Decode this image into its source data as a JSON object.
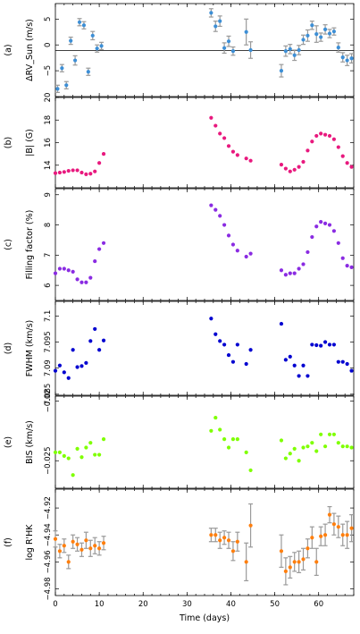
{
  "colors": {
    "rv": "#3d8fd6",
    "bfield": "#e8197e",
    "filling": "#8a2be2",
    "fwhm": "#0000d0",
    "bis": "#7fff00",
    "rhk": "#ff7f0e",
    "errbar": "#9a9a9a"
  },
  "xaxis": {
    "label": "Time (days)",
    "lim": [
      0,
      68
    ],
    "ticks": [
      0,
      10,
      20,
      30,
      40,
      50,
      60
    ]
  },
  "chart_data": [
    {
      "type": "scatter",
      "panel": "(a)",
      "ylabel": "(m/s)",
      "ylabel_full": "ΔRV_Sun (m/s)",
      "ylim": [
        -10,
        8
      ],
      "yticks": [
        -5,
        0,
        5
      ],
      "has_zero_line": true,
      "x": [
        0.5,
        1.5,
        2.5,
        3.5,
        4.5,
        5.5,
        6.5,
        7.5,
        8.5,
        9.5,
        10.5,
        35.5,
        36.5,
        37.5,
        38.5,
        39.5,
        40.5,
        43.5,
        44.5,
        51.5,
        52.5,
        53.5,
        54.5,
        55.5,
        56.5,
        57.5,
        58.5,
        59.5,
        60.5,
        61.5,
        62.5,
        63.5,
        64.5,
        65.5,
        66.5,
        67.5
      ],
      "y": [
        -8.5,
        -4.5,
        -7.8,
        0.8,
        -3.0,
        4.4,
        3.8,
        -5.2,
        1.8,
        -0.7,
        -0.2,
        6.2,
        3.6,
        4.6,
        -0.6,
        0.7,
        -1.2,
        2.5,
        -1.0,
        -5.0,
        -1.2,
        -0.8,
        -2.0,
        -1.0,
        1.0,
        1.8,
        3.8,
        2.1,
        1.5,
        3.0,
        2.2,
        2.6,
        -0.5,
        -2.4,
        -3.0,
        -2.6
      ],
      "err": [
        0.7,
        0.7,
        0.7,
        0.7,
        0.9,
        0.7,
        0.7,
        0.7,
        0.8,
        0.7,
        0.7,
        0.8,
        1.0,
        1.0,
        1.0,
        1.0,
        0.8,
        2.5,
        1.6,
        1.2,
        1.0,
        0.9,
        1.0,
        0.9,
        0.9,
        1.1,
        0.8,
        1.6,
        0.8,
        0.9,
        0.8,
        0.7,
        0.9,
        0.9,
        1.0,
        0.9
      ]
    },
    {
      "type": "scatter",
      "panel": "(b)",
      "ylabel": "|B| (G)",
      "ylim": [
        12.0,
        20.0
      ],
      "yticks": [
        14,
        16,
        18,
        20
      ],
      "x": [
        0,
        1,
        2,
        3,
        4,
        5,
        6,
        7,
        8,
        9,
        10,
        11,
        35.5,
        36.5,
        37.5,
        38.5,
        39.5,
        40.5,
        41.5,
        43.5,
        44.5,
        51.5,
        52.5,
        53.5,
        54.5,
        55.5,
        56.5,
        57.5,
        58.5,
        59.5,
        60.5,
        61.5,
        62.5,
        63.5,
        64.5,
        65.5,
        66.5,
        67.5
      ],
      "y": [
        13.3,
        13.35,
        13.4,
        13.5,
        13.55,
        13.55,
        13.35,
        13.2,
        13.25,
        13.45,
        14.2,
        15.0,
        18.2,
        17.5,
        16.8,
        16.4,
        15.7,
        15.2,
        14.9,
        14.6,
        14.4,
        14.05,
        13.7,
        13.45,
        13.6,
        13.85,
        14.3,
        15.3,
        16.1,
        16.6,
        16.8,
        16.7,
        16.6,
        16.3,
        15.6,
        14.8,
        14.2,
        13.85
      ]
    },
    {
      "type": "scatter",
      "panel": "(c)",
      "ylabel": "Filling factor  (%)",
      "ylim": [
        5.5,
        9.2
      ],
      "yticks": [
        6,
        7,
        8,
        9
      ],
      "x": [
        0,
        1,
        2,
        3,
        4,
        5,
        6,
        7,
        8,
        9,
        10,
        11,
        35.5,
        36.5,
        37.5,
        38.5,
        39.5,
        40.5,
        41.5,
        43.5,
        44.5,
        51.5,
        52.5,
        53.5,
        54.5,
        55.5,
        56.5,
        57.5,
        58.5,
        59.5,
        60.5,
        61.5,
        62.5,
        63.5,
        64.5,
        65.5,
        66.5,
        67.5
      ],
      "y": [
        6.4,
        6.55,
        6.55,
        6.5,
        6.45,
        6.2,
        6.1,
        6.1,
        6.25,
        6.8,
        7.2,
        7.4,
        8.65,
        8.5,
        8.3,
        8.0,
        7.65,
        7.35,
        7.15,
        6.95,
        7.05,
        6.5,
        6.35,
        6.4,
        6.4,
        6.55,
        6.7,
        7.1,
        7.6,
        7.95,
        8.1,
        8.05,
        8.0,
        7.8,
        7.4,
        6.9,
        6.65,
        6.6
      ]
    },
    {
      "type": "scatter",
      "panel": "(d)",
      "ylabel": "FWHM  (km/s)",
      "ylim": [
        7.0848,
        7.1028
      ],
      "yticks": [
        7.085,
        7.09,
        7.095,
        7.1
      ],
      "x": [
        0,
        1,
        2,
        3,
        4,
        5,
        6,
        7,
        8,
        9,
        10,
        11,
        35.5,
        36.5,
        37.5,
        38.5,
        39.5,
        40.5,
        41.5,
        43.5,
        44.5,
        51.5,
        52.5,
        53.5,
        54.5,
        55.5,
        56.5,
        57.5,
        58.5,
        59.5,
        60.5,
        61.5,
        62.5,
        63.5,
        64.5,
        65.5,
        66.5,
        67.5
      ],
      "y": [
        7.0895,
        7.0905,
        7.0892,
        7.0881,
        7.0935,
        7.0902,
        7.0904,
        7.091,
        7.0952,
        7.0975,
        7.0935,
        7.0953,
        7.0995,
        7.0965,
        7.0952,
        7.0945,
        7.0925,
        7.0912,
        7.0945,
        7.0908,
        7.0935,
        7.0985,
        7.0916,
        7.0922,
        7.0905,
        7.0885,
        7.0905,
        7.0885,
        7.0945,
        7.0944,
        7.0943,
        7.095,
        7.0945,
        7.0945,
        7.0912,
        7.0912,
        7.0908,
        7.0895
      ]
    },
    {
      "type": "scatter",
      "panel": "(e)",
      "ylabel": "BIS  (km/s)",
      "ylim": [
        -0.0273,
        -0.0196
      ],
      "yticks": [
        -0.025,
        -0.02
      ],
      "x": [
        0,
        1,
        2,
        3,
        4,
        5,
        6,
        7,
        8,
        9,
        10,
        11,
        35.5,
        36.5,
        37.5,
        38.5,
        39.5,
        40.5,
        41.5,
        43.5,
        44.5,
        51.5,
        52.5,
        53.5,
        54.5,
        55.5,
        56.5,
        57.5,
        58.5,
        59.5,
        60.5,
        61.5,
        62.5,
        63.5,
        64.5,
        65.5,
        66.5,
        67.5
      ],
      "y": [
        -0.0243,
        -0.0243,
        -0.0246,
        -0.0248,
        -0.0262,
        -0.024,
        -0.0247,
        -0.0239,
        -0.0235,
        -0.0245,
        -0.0245,
        -0.0232,
        -0.0225,
        -0.0214,
        -0.0224,
        -0.0232,
        -0.0239,
        -0.0232,
        -0.0232,
        -0.0243,
        -0.0258,
        -0.0233,
        -0.0248,
        -0.0244,
        -0.024,
        -0.025,
        -0.0239,
        -0.0238,
        -0.0235,
        -0.0242,
        -0.0228,
        -0.0238,
        -0.0228,
        -0.0228,
        -0.0235,
        -0.0238,
        -0.0238,
        -0.0239
      ]
    },
    {
      "type": "scatter",
      "panel": "(f)",
      "ylabel": "log R'HK",
      "ylim": [
        -4.985,
        -4.906
      ],
      "yticks": [
        -4.92,
        -4.94,
        -4.96,
        -4.98
      ],
      "x": [
        0,
        1,
        2,
        3,
        4,
        5,
        6,
        7,
        8,
        9,
        10,
        11,
        35.5,
        36.5,
        37.5,
        38.5,
        39.5,
        40.5,
        41.5,
        43.5,
        44.5,
        51.5,
        52.5,
        53.5,
        54.5,
        55.5,
        56.5,
        57.5,
        58.5,
        59.5,
        60.5,
        61.5,
        62.5,
        63.5,
        64.5,
        65.5,
        66.5,
        67.5
      ],
      "y": [
        -4.943,
        -4.952,
        -4.948,
        -4.96,
        -4.945,
        -4.947,
        -4.951,
        -4.944,
        -4.95,
        -4.948,
        -4.95,
        -4.946,
        -4.94,
        -4.94,
        -4.944,
        -4.942,
        -4.944,
        -4.952,
        -4.945,
        -4.96,
        -4.933,
        -4.952,
        -4.967,
        -4.964,
        -4.96,
        -4.96,
        -4.958,
        -4.95,
        -4.942,
        -4.96,
        -4.941,
        -4.94,
        -4.925,
        -4.932,
        -4.934,
        -4.94,
        -4.94,
        -4.935
      ],
      "err": [
        0.006,
        0.005,
        0.005,
        0.005,
        0.005,
        0.005,
        0.005,
        0.006,
        0.006,
        0.006,
        0.005,
        0.005,
        0.005,
        0.005,
        0.006,
        0.005,
        0.006,
        0.007,
        0.007,
        0.014,
        0.016,
        0.012,
        0.01,
        0.008,
        0.007,
        0.008,
        0.008,
        0.007,
        0.008,
        0.01,
        0.007,
        0.008,
        0.006,
        0.008,
        0.008,
        0.008,
        0.01,
        0.01
      ]
    }
  ]
}
